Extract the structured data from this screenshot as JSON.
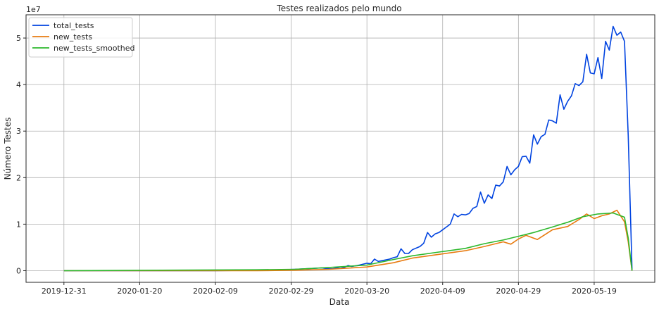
{
  "chart_data": {
    "type": "line",
    "title": "Testes realizados pelo mundo",
    "xlabel": "Data",
    "ylabel": "Número Testes",
    "y_offset_text": "1e7",
    "y_scale": 10000000,
    "xlim": [
      "2019-12-21",
      "2020-06-04"
    ],
    "ylim": [
      -0.25,
      5.5
    ],
    "x_ticks": [
      "2019-12-31",
      "2020-01-20",
      "2020-02-09",
      "2020-02-29",
      "2020-03-20",
      "2020-04-09",
      "2020-04-29",
      "2020-05-19"
    ],
    "y_ticks": [
      0,
      1,
      2,
      3,
      4,
      5
    ],
    "grid": true,
    "legend_position": "top-left",
    "series": [
      {
        "name": "total_tests",
        "color": "#0043e0",
        "points": [
          [
            "2019-12-31",
            0
          ],
          [
            "2020-01-20",
            0
          ],
          [
            "2020-02-09",
            0
          ],
          [
            "2020-02-20",
            0.01
          ],
          [
            "2020-02-26",
            0.02
          ],
          [
            "2020-03-01",
            0.03
          ],
          [
            "2020-03-06",
            0.05
          ],
          [
            "2020-03-08",
            0.06
          ],
          [
            "2020-03-09",
            0.05
          ],
          [
            "2020-03-10",
            0.04
          ],
          [
            "2020-03-11",
            0.04
          ],
          [
            "2020-03-12",
            0.06
          ],
          [
            "2020-03-13",
            0.05
          ],
          [
            "2020-03-14",
            0.07
          ],
          [
            "2020-03-15",
            0.11
          ],
          [
            "2020-03-16",
            0.09
          ],
          [
            "2020-03-18",
            0.12
          ],
          [
            "2020-03-20",
            0.16
          ],
          [
            "2020-03-21",
            0.15
          ],
          [
            "2020-03-22",
            0.25
          ],
          [
            "2020-03-23",
            0.2
          ],
          [
            "2020-03-26",
            0.25
          ],
          [
            "2020-03-27",
            0.28
          ],
          [
            "2020-03-28",
            0.3
          ],
          [
            "2020-03-29",
            0.47
          ],
          [
            "2020-03-30",
            0.37
          ],
          [
            "2020-03-31",
            0.37
          ],
          [
            "2020-04-01",
            0.45
          ],
          [
            "2020-04-03",
            0.52
          ],
          [
            "2020-04-04",
            0.59
          ],
          [
            "2020-04-05",
            0.82
          ],
          [
            "2020-04-06",
            0.72
          ],
          [
            "2020-04-07",
            0.79
          ],
          [
            "2020-04-08",
            0.82
          ],
          [
            "2020-04-10",
            0.94
          ],
          [
            "2020-04-11",
            1.0
          ],
          [
            "2020-04-12",
            1.22
          ],
          [
            "2020-04-13",
            1.16
          ],
          [
            "2020-04-14",
            1.21
          ],
          [
            "2020-04-15",
            1.2
          ],
          [
            "2020-04-16",
            1.23
          ],
          [
            "2020-04-17",
            1.34
          ],
          [
            "2020-04-18",
            1.38
          ],
          [
            "2020-04-19",
            1.69
          ],
          [
            "2020-04-20",
            1.45
          ],
          [
            "2020-04-21",
            1.63
          ],
          [
            "2020-04-22",
            1.55
          ],
          [
            "2020-04-23",
            1.84
          ],
          [
            "2020-04-24",
            1.82
          ],
          [
            "2020-04-25",
            1.91
          ],
          [
            "2020-04-26",
            2.24
          ],
          [
            "2020-04-27",
            2.06
          ],
          [
            "2020-04-28",
            2.17
          ],
          [
            "2020-04-29",
            2.24
          ],
          [
            "2020-04-30",
            2.45
          ],
          [
            "2020-05-01",
            2.46
          ],
          [
            "2020-05-02",
            2.31
          ],
          [
            "2020-05-03",
            2.92
          ],
          [
            "2020-05-04",
            2.72
          ],
          [
            "2020-05-05",
            2.88
          ],
          [
            "2020-05-06",
            2.93
          ],
          [
            "2020-05-07",
            3.24
          ],
          [
            "2020-05-08",
            3.22
          ],
          [
            "2020-05-09",
            3.17
          ],
          [
            "2020-05-10",
            3.78
          ],
          [
            "2020-05-11",
            3.47
          ],
          [
            "2020-05-12",
            3.64
          ],
          [
            "2020-05-13",
            3.76
          ],
          [
            "2020-05-14",
            4.02
          ],
          [
            "2020-05-15",
            3.98
          ],
          [
            "2020-05-16",
            4.06
          ],
          [
            "2020-05-17",
            4.65
          ],
          [
            "2020-05-18",
            4.25
          ],
          [
            "2020-05-19",
            4.23
          ],
          [
            "2020-05-20",
            4.58
          ],
          [
            "2020-05-21",
            4.13
          ],
          [
            "2020-05-22",
            4.93
          ],
          [
            "2020-05-23",
            4.74
          ],
          [
            "2020-05-24",
            5.25
          ],
          [
            "2020-05-25",
            5.06
          ],
          [
            "2020-05-26",
            5.13
          ],
          [
            "2020-05-27",
            4.93
          ],
          [
            "2020-05-28",
            2.9
          ],
          [
            "2020-05-29",
            0.02
          ]
        ]
      },
      {
        "name": "new_tests",
        "color": "#e87b10",
        "points": [
          [
            "2019-12-31",
            0
          ],
          [
            "2020-02-20",
            0
          ],
          [
            "2020-03-01",
            0.01
          ],
          [
            "2020-03-10",
            0.03
          ],
          [
            "2020-03-20",
            0.08
          ],
          [
            "2020-03-27",
            0.17
          ],
          [
            "2020-04-01",
            0.27
          ],
          [
            "2020-04-08",
            0.35
          ],
          [
            "2020-04-15",
            0.43
          ],
          [
            "2020-04-20",
            0.52
          ],
          [
            "2020-04-25",
            0.62
          ],
          [
            "2020-04-27",
            0.57
          ],
          [
            "2020-04-29",
            0.68
          ],
          [
            "2020-05-01",
            0.76
          ],
          [
            "2020-05-04",
            0.67
          ],
          [
            "2020-05-08",
            0.88
          ],
          [
            "2020-05-12",
            0.95
          ],
          [
            "2020-05-15",
            1.1
          ],
          [
            "2020-05-17",
            1.22
          ],
          [
            "2020-05-19",
            1.12
          ],
          [
            "2020-05-21",
            1.18
          ],
          [
            "2020-05-23",
            1.22
          ],
          [
            "2020-05-25",
            1.3
          ],
          [
            "2020-05-27",
            1.05
          ],
          [
            "2020-05-28",
            0.62
          ],
          [
            "2020-05-29",
            0.0
          ]
        ]
      },
      {
        "name": "new_tests_smoothed",
        "color": "#2db82d",
        "points": [
          [
            "2019-12-31",
            0
          ],
          [
            "2020-02-20",
            0.02
          ],
          [
            "2020-03-01",
            0.03
          ],
          [
            "2020-03-10",
            0.07
          ],
          [
            "2020-03-20",
            0.12
          ],
          [
            "2020-03-27",
            0.24
          ],
          [
            "2020-04-01",
            0.32
          ],
          [
            "2020-04-08",
            0.4
          ],
          [
            "2020-04-15",
            0.48
          ],
          [
            "2020-04-20",
            0.58
          ],
          [
            "2020-04-25",
            0.66
          ],
          [
            "2020-04-29",
            0.74
          ],
          [
            "2020-05-03",
            0.82
          ],
          [
            "2020-05-08",
            0.94
          ],
          [
            "2020-05-12",
            1.04
          ],
          [
            "2020-05-16",
            1.16
          ],
          [
            "2020-05-20",
            1.22
          ],
          [
            "2020-05-24",
            1.24
          ],
          [
            "2020-05-27",
            1.15
          ],
          [
            "2020-05-28",
            0.7
          ],
          [
            "2020-05-29",
            0.0
          ]
        ]
      }
    ]
  }
}
